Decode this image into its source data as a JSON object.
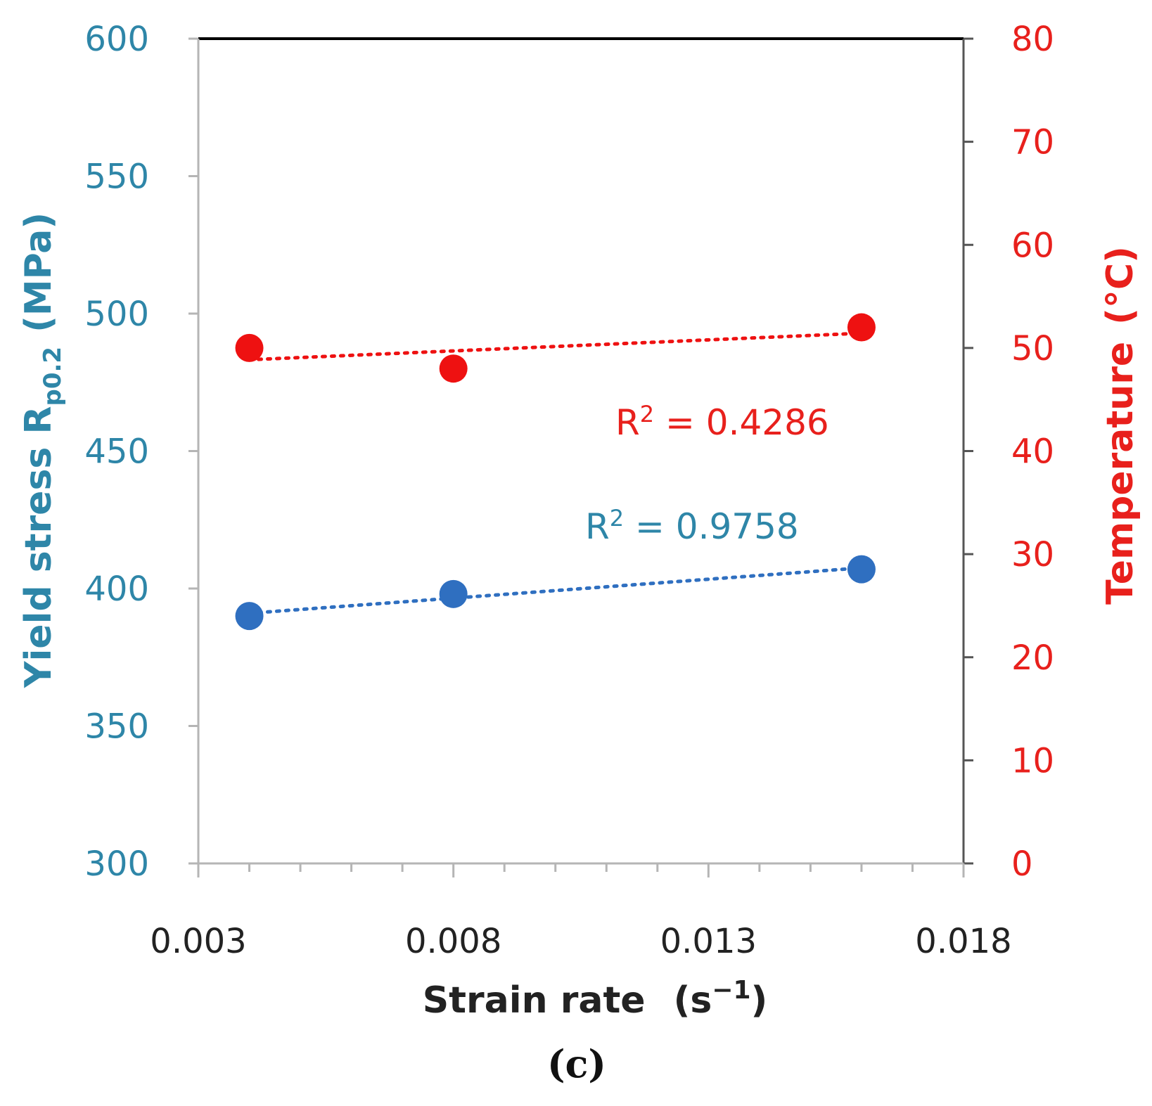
{
  "chart_data": {
    "type": "scatter",
    "panel_label": "(c)",
    "x": [
      0.004,
      0.008,
      0.016
    ],
    "xlim": [
      0.003,
      0.018
    ],
    "xticks": [
      "0.003",
      "0.008",
      "0.013",
      "0.018"
    ],
    "xlabel": "Strain rate",
    "xlabel_unit": "(s",
    "xlabel_unit_sup": "−1",
    "xlabel_unit_close": ")",
    "left_axis": {
      "label": "Yield stress R",
      "label_sub": "p0.2",
      "label_unit": "(MPa)",
      "ylim": [
        300,
        600
      ],
      "ticks": [
        "300",
        "350",
        "400",
        "450",
        "500",
        "550",
        "600"
      ],
      "color": "#2e86a8"
    },
    "right_axis": {
      "label": "Temperature",
      "label_unit": "(°C)",
      "ylim": [
        0,
        80
      ],
      "ticks": [
        "0",
        "10",
        "20",
        "30",
        "40",
        "50",
        "60",
        "70",
        "80"
      ],
      "color": "#e8201c"
    },
    "series": [
      {
        "name": "Yield stress",
        "axis": "left",
        "values": [
          390,
          398,
          407
        ],
        "color": "#2f6fc0",
        "trendline": "linear",
        "r2_prefix": "R",
        "r2_sup": "2",
        "r2_value": " = 0.9758"
      },
      {
        "name": "Temperature",
        "axis": "right",
        "values": [
          50,
          48,
          52
        ],
        "color": "#ee1111",
        "trendline": "linear",
        "r2_prefix": "R",
        "r2_sup": "2",
        "r2_value": " = 0.4286"
      }
    ]
  }
}
